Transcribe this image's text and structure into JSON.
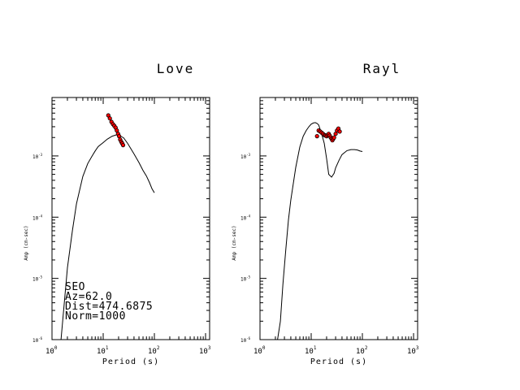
{
  "chart_data": [
    {
      "type": "line",
      "title": "Love",
      "xlabel": "Period (s)",
      "ylabel": "Amp (cm-sec)",
      "xscale": "log",
      "yscale": "log",
      "xlim": [
        1,
        1200
      ],
      "ylim": [
        1e-06,
        0.009
      ],
      "xticks": [
        {
          "base": "10",
          "exp": "0"
        },
        {
          "base": "10",
          "exp": "1"
        },
        {
          "base": "10",
          "exp": "2"
        },
        {
          "base": "10",
          "exp": "3"
        }
      ],
      "yticks": [
        {
          "base": "10",
          "exp": "-3",
          "value": 0.001
        },
        {
          "base": "10",
          "exp": "-4",
          "value": 0.0001
        },
        {
          "base": "10",
          "exp": "-5",
          "value": 1e-05
        },
        {
          "base": "10",
          "exp": "-6",
          "value": 1e-06
        }
      ],
      "series": [
        {
          "style": "line",
          "x": [
            1.5,
            2,
            2.5,
            3,
            4,
            5,
            6,
            7,
            8,
            10,
            12,
            15,
            18,
            20,
            25,
            30,
            40,
            50,
            60,
            70,
            80,
            90,
            100
          ],
          "y": [
            1e-06,
            1.5e-05,
            6e-05,
            0.000165,
            0.00046,
            0.00075,
            0.00098,
            0.00121,
            0.00142,
            0.00165,
            0.00188,
            0.0021,
            0.00221,
            0.00219,
            0.00198,
            0.0016,
            0.00108,
            0.00078,
            0.00058,
            0.00047,
            0.00037,
            0.00029,
            0.00025
          ]
        },
        {
          "style": "points",
          "x": [
            12.6,
            13.5,
            14.5,
            15.5,
            16.5,
            17.5,
            18.5,
            19.5,
            20.5,
            21.5,
            22.5,
            23.5,
            24.5
          ],
          "y": [
            0.0046,
            0.0041,
            0.0036,
            0.0033,
            0.0031,
            0.0029,
            0.0026,
            0.0023,
            0.0021,
            0.00185,
            0.0017,
            0.0016,
            0.0015
          ]
        }
      ],
      "annotations": [
        "SEO",
        "Az=62.0",
        "Dist=474.6875",
        "Norm=1000"
      ]
    },
    {
      "type": "line",
      "title": "Rayl",
      "xlabel": "Period (s)",
      "ylabel": "Amp (cm-sec)",
      "xscale": "log",
      "yscale": "log",
      "xlim": [
        1,
        1200
      ],
      "ylim": [
        1e-06,
        0.009
      ],
      "xticks": [
        {
          "base": "10",
          "exp": "0"
        },
        {
          "base": "10",
          "exp": "1"
        },
        {
          "base": "10",
          "exp": "2"
        },
        {
          "base": "10",
          "exp": "3"
        }
      ],
      "yticks": [
        {
          "base": "10",
          "exp": "-3",
          "value": 0.001
        },
        {
          "base": "10",
          "exp": "-4",
          "value": 0.0001
        },
        {
          "base": "10",
          "exp": "-5",
          "value": 1e-05
        },
        {
          "base": "10",
          "exp": "-6",
          "value": 1e-06
        }
      ],
      "series": [
        {
          "style": "line",
          "x": [
            2.2,
            2.5,
            2.8,
            3.2,
            3.6,
            4,
            5,
            6,
            7,
            8,
            9,
            10,
            11,
            12,
            13,
            14,
            15,
            16,
            18,
            20,
            22,
            25,
            28,
            30,
            35,
            40,
            50,
            60,
            70,
            80,
            90,
            100
          ],
          "y": [
            1e-06,
            2e-06,
            8e-06,
            3e-05,
            9e-05,
            0.00019,
            0.00065,
            0.0014,
            0.0021,
            0.0026,
            0.003,
            0.0033,
            0.00345,
            0.0035,
            0.0034,
            0.0032,
            0.0027,
            0.0023,
            0.0016,
            0.0009,
            0.0005,
            0.00045,
            0.00052,
            0.00064,
            0.00085,
            0.00105,
            0.00122,
            0.00127,
            0.00127,
            0.00125,
            0.0012,
            0.00118
          ]
        },
        {
          "style": "points",
          "x": [
            13,
            14,
            15,
            16,
            17,
            18,
            19,
            20,
            21,
            22,
            23,
            24,
            25,
            26,
            27,
            28,
            30,
            32,
            34,
            36
          ],
          "y": [
            0.0021,
            0.0026,
            0.0025,
            0.0024,
            0.0023,
            0.0022,
            0.00215,
            0.0021,
            0.0022,
            0.0023,
            0.00215,
            0.002,
            0.0019,
            0.0018,
            0.0019,
            0.002,
            0.0023,
            0.0026,
            0.0028,
            0.0025
          ]
        }
      ],
      "annotations": []
    }
  ],
  "style": {
    "marker_fill": "#ff0000",
    "line_color": "#000000",
    "background": "#ffffff"
  }
}
